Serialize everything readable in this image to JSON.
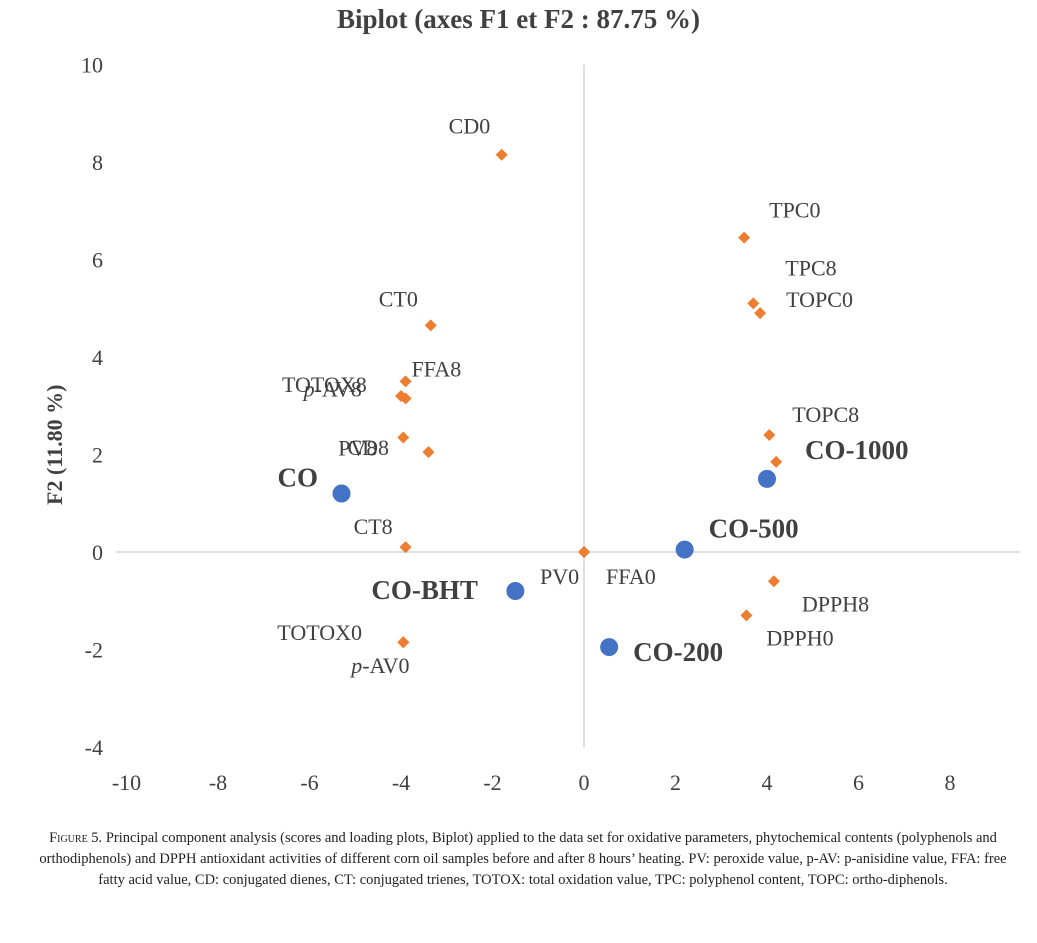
{
  "chart_data": {
    "type": "scatter",
    "title": "Biplot (axes F1 et F2 : 87.75 %)",
    "xlabel": "",
    "ylabel": "F2 (11.80 %)",
    "xlim": [
      -10,
      9
    ],
    "ylim": [
      -4,
      10
    ],
    "xticks": [
      "-10",
      "-8",
      "-6",
      "-4",
      "-2",
      "0",
      "2",
      "4",
      "6",
      "8"
    ],
    "yticks": [
      "-4",
      "-2",
      "0",
      "2",
      "4",
      "6",
      "8",
      "10"
    ],
    "grid": false,
    "legend": "none",
    "colors": {
      "variables": "#ED7D31",
      "observations": "#4472C4",
      "axis": "#bfbfbf",
      "text": "#404040"
    },
    "series": [
      {
        "kind": "variables",
        "points": [
          {
            "label": "CD0",
            "x": -1.8,
            "y": 8.15
          },
          {
            "label": "TPC0",
            "x": 3.5,
            "y": 6.45
          },
          {
            "label": "TPC8",
            "x": 3.7,
            "y": 5.1
          },
          {
            "label": "TOPC0",
            "x": 3.85,
            "y": 4.9
          },
          {
            "label": "CT0",
            "x": -3.35,
            "y": 4.65
          },
          {
            "label": "p-AV8",
            "x": -3.9,
            "y": 3.5
          },
          {
            "label": "TOTOX8",
            "x": -4.0,
            "y": 3.2
          },
          {
            "label": "FFA8",
            "x": -3.9,
            "y": 3.15
          },
          {
            "label": "PV8",
            "x": -3.95,
            "y": 2.35
          },
          {
            "label": "CD8",
            "x": -3.4,
            "y": 2.05
          },
          {
            "label": "TOPC8",
            "x": 4.05,
            "y": 2.4
          },
          {
            "label": "",
            "x": 4.2,
            "y": 1.85
          },
          {
            "label": "CT8",
            "x": -3.9,
            "y": 0.1
          },
          {
            "label": "PV0",
            "x": 0.0,
            "y": 0.0
          },
          {
            "label": "FFA0",
            "x": 0.0,
            "y": 0.0
          },
          {
            "label": "DPPH8",
            "x": 4.15,
            "y": -0.6
          },
          {
            "label": "DPPH0",
            "x": 3.55,
            "y": -1.3
          },
          {
            "label": "TOTOX0",
            "x": -3.95,
            "y": -1.85
          },
          {
            "label": "p-AV0",
            "x": -3.95,
            "y": -1.85
          }
        ]
      },
      {
        "kind": "observations",
        "points": [
          {
            "label": "CO",
            "x": -5.3,
            "y": 1.2
          },
          {
            "label": "CO-1000",
            "x": 4.0,
            "y": 1.5
          },
          {
            "label": "CO-500",
            "x": 2.2,
            "y": 0.05
          },
          {
            "label": "CO-BHT",
            "x": -1.5,
            "y": -0.8
          },
          {
            "label": "CO-200",
            "x": 0.55,
            "y": -1.95
          }
        ]
      }
    ]
  },
  "caption": {
    "prefix": "Figure 5.",
    "text": " Principal component analysis (scores and loading plots, Biplot) applied to the data set for oxidative parameters, phytochemical contents (polyphenols and orthodiphenols) and DPPH antioxidant activities of different corn oil samples before and after 8 hours’ heating. PV: peroxide value, p-AV: p-anisidine value, FFA: free fatty acid value, CD: conjugated dienes, CT: conjugated trienes, TOTOX: total oxidation value, TPC: polyphenol content, TOPC: ortho-diphenols."
  }
}
